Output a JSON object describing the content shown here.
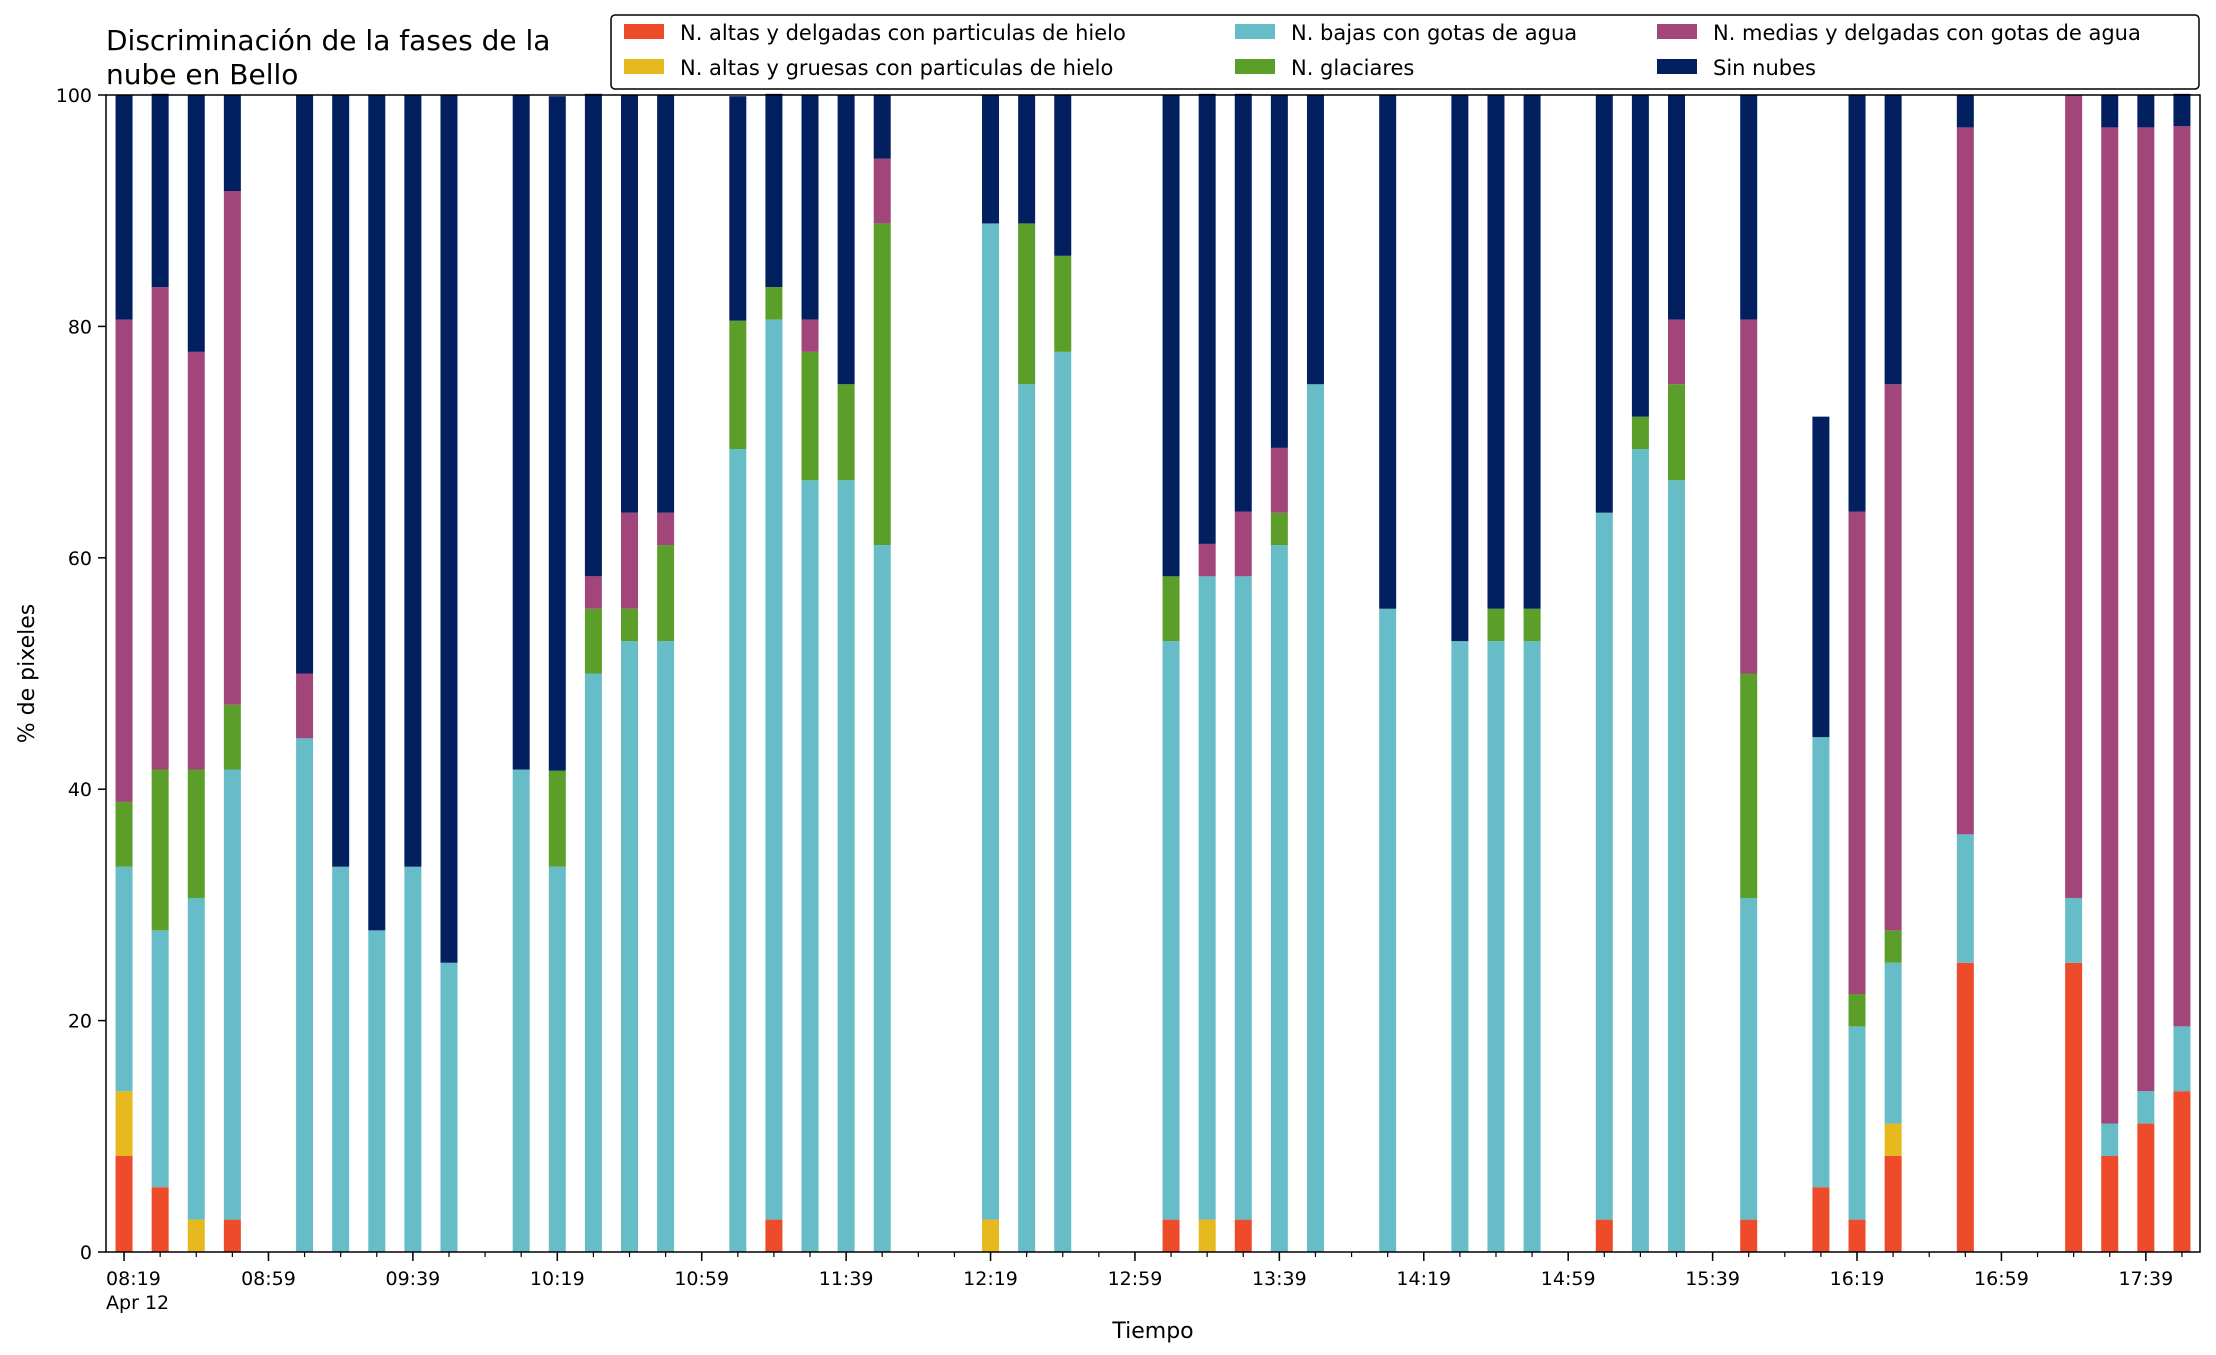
{
  "chart_data": {
    "type": "bar",
    "stacked": true,
    "title_lines": [
      "Discriminación de la fases de la",
      "nube en Bello"
    ],
    "xlabel": "Tiempo",
    "ylabel": "% de pixeles",
    "ylim": [
      0,
      100
    ],
    "yticks": [
      0,
      20,
      40,
      60,
      80,
      100
    ],
    "grid": false,
    "legend_position": "top-right",
    "x_range_minutes": [
      494,
      1074
    ],
    "x_ticks_minor_step": 10,
    "x_tick_labels": [
      {
        "minute": 499,
        "label": "08:19",
        "sublabel": "Apr 12"
      },
      {
        "minute": 539,
        "label": "08:59"
      },
      {
        "minute": 579,
        "label": "09:39"
      },
      {
        "minute": 619,
        "label": "10:19"
      },
      {
        "minute": 659,
        "label": "10:59"
      },
      {
        "minute": 699,
        "label": "11:39"
      },
      {
        "minute": 739,
        "label": "12:19"
      },
      {
        "minute": 779,
        "label": "12:59"
      },
      {
        "minute": 819,
        "label": "13:39"
      },
      {
        "minute": 859,
        "label": "14:19"
      },
      {
        "minute": 899,
        "label": "14:59"
      },
      {
        "minute": 939,
        "label": "15:39"
      },
      {
        "minute": 979,
        "label": "16:19"
      },
      {
        "minute": 1019,
        "label": "16:59"
      },
      {
        "minute": 1059,
        "label": "17:39"
      }
    ],
    "x_minutes": [
      499,
      509,
      519,
      529,
      549,
      559,
      569,
      579,
      589,
      609,
      619,
      629,
      639,
      649,
      669,
      679,
      689,
      699,
      709,
      739,
      749,
      759,
      789,
      799,
      809,
      819,
      829,
      849,
      869,
      879,
      889,
      909,
      919,
      929,
      949,
      969,
      979,
      989,
      1009,
      1039,
      1049,
      1059,
      1069
    ],
    "series": [
      {
        "name": "N. altas y delgadas con particulas de hielo",
        "color": "#ee4b2b",
        "values": [
          8.3,
          5.6,
          0,
          2.8,
          0,
          0,
          0,
          0,
          0,
          0,
          0,
          0,
          0,
          0,
          0,
          2.8,
          0,
          0,
          0,
          0,
          0,
          0,
          2.8,
          0,
          2.8,
          0,
          0,
          0,
          0,
          0,
          0,
          2.8,
          0,
          0,
          2.8,
          5.6,
          2.8,
          8.3,
          25,
          25,
          8.3,
          11.1,
          13.9
        ]
      },
      {
        "name": "N. altas y gruesas con particulas de hielo",
        "color": "#e6b91e",
        "values": [
          5.6,
          0,
          2.8,
          0,
          0,
          0,
          0,
          0,
          0,
          0,
          0,
          0,
          0,
          0,
          0,
          0,
          0,
          0,
          0,
          2.8,
          0,
          0,
          0,
          2.8,
          0,
          0,
          0,
          0,
          0,
          0,
          0,
          0,
          0,
          0,
          0,
          0,
          0,
          2.8,
          0,
          0,
          0,
          0,
          0
        ]
      },
      {
        "name": "N. bajas con gotas de agua",
        "color": "#66bdc8",
        "values": [
          19.4,
          22.2,
          27.8,
          38.9,
          44.4,
          33.3,
          27.8,
          33.3,
          25,
          41.7,
          33.3,
          50,
          52.8,
          52.8,
          69.4,
          77.8,
          66.7,
          66.7,
          61.1,
          86.1,
          75,
          77.8,
          50,
          55.6,
          55.6,
          61.1,
          75,
          55.6,
          52.8,
          52.8,
          52.8,
          61.1,
          69.4,
          66.7,
          27.8,
          38.9,
          16.7,
          13.9,
          11.1,
          5.6,
          2.8,
          2.8,
          5.6
        ]
      },
      {
        "name": "N. glaciares",
        "color": "#5b9f2a",
        "values": [
          5.6,
          13.9,
          11.1,
          5.6,
          0,
          0,
          0,
          0,
          0,
          0,
          8.3,
          5.6,
          2.8,
          8.3,
          11.1,
          2.8,
          11.1,
          8.3,
          27.8,
          0,
          13.9,
          8.3,
          5.6,
          0,
          0,
          2.8,
          0,
          0,
          0,
          2.8,
          2.8,
          0,
          2.8,
          8.3,
          19.4,
          0,
          2.8,
          2.8,
          0,
          0,
          0,
          0,
          0
        ]
      },
      {
        "name": "N. medias y delgadas con gotas de agua",
        "color": "#a1457a",
        "values": [
          41.7,
          41.7,
          36.1,
          44.4,
          5.6,
          0,
          0,
          0,
          0,
          0,
          0,
          2.8,
          8.3,
          2.8,
          0,
          0,
          2.8,
          0,
          5.6,
          0,
          0,
          0,
          0,
          2.8,
          5.6,
          5.6,
          0,
          0,
          0,
          0,
          0,
          0,
          0,
          5.6,
          30.6,
          0,
          41.7,
          47.2,
          61.1,
          69.4,
          86.1,
          83.3,
          77.8
        ]
      },
      {
        "name": "Sin nubes",
        "color": "#02205f",
        "values": [
          19.4,
          16.7,
          22.2,
          8.3,
          50,
          66.7,
          72.2,
          66.7,
          75,
          58.3,
          58.3,
          41.7,
          36.1,
          36.1,
          19.4,
          16.7,
          19.4,
          25,
          5.5,
          11.1,
          11.1,
          13.9,
          41.6,
          38.9,
          36.1,
          30.5,
          25,
          44.4,
          47.2,
          44.4,
          44.4,
          36.1,
          27.8,
          19.4,
          19.4,
          27.7,
          36,
          25,
          2.8,
          0,
          2.8,
          2.8,
          2.8
        ]
      }
    ]
  }
}
